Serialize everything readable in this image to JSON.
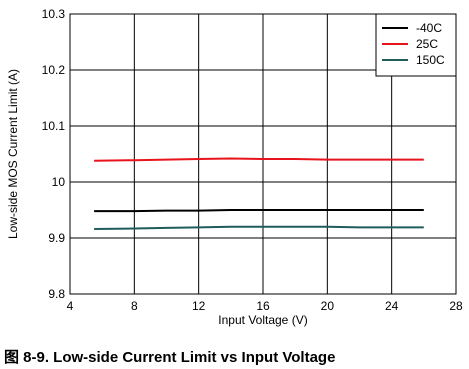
{
  "caption": "图 8-9. Low-side Current Limit vs Input Voltage",
  "chart_data": {
    "type": "line",
    "title": "",
    "xlabel": "Input Voltage (V)",
    "ylabel": "Low-side MOS Current Limit (A)",
    "xlim": [
      4,
      28
    ],
    "ylim": [
      9.8,
      10.3
    ],
    "xticks": [
      4,
      8,
      12,
      16,
      20,
      24,
      28
    ],
    "yticks": [
      9.8,
      9.9,
      10,
      10.1,
      10.2,
      10.3
    ],
    "xtick_labels": [
      "4",
      "8",
      "12",
      "16",
      "20",
      "24",
      "28"
    ],
    "ytick_labels": [
      "9.8",
      "9.9",
      "10",
      "10.1",
      "10.2",
      "10.3"
    ],
    "grid": true,
    "legend_position": "top-right",
    "series": [
      {
        "name": "-40C",
        "color": "#000000",
        "x": [
          5.5,
          8,
          10,
          12,
          14,
          16,
          18,
          20,
          22,
          24,
          26
        ],
        "y": [
          9.948,
          9.948,
          9.949,
          9.949,
          9.95,
          9.95,
          9.95,
          9.95,
          9.95,
          9.95,
          9.95
        ]
      },
      {
        "name": "25C",
        "color": "#e8141b",
        "x": [
          5.5,
          8,
          10,
          12,
          14,
          16,
          18,
          20,
          22,
          24,
          26
        ],
        "y": [
          10.038,
          10.039,
          10.04,
          10.041,
          10.042,
          10.041,
          10.041,
          10.04,
          10.04,
          10.04,
          10.04
        ]
      },
      {
        "name": "150C",
        "color": "#1f5c5c",
        "x": [
          5.5,
          8,
          10,
          12,
          14,
          16,
          18,
          20,
          22,
          24,
          26
        ],
        "y": [
          9.916,
          9.917,
          9.918,
          9.919,
          9.92,
          9.92,
          9.92,
          9.92,
          9.919,
          9.919,
          9.919
        ]
      }
    ]
  }
}
